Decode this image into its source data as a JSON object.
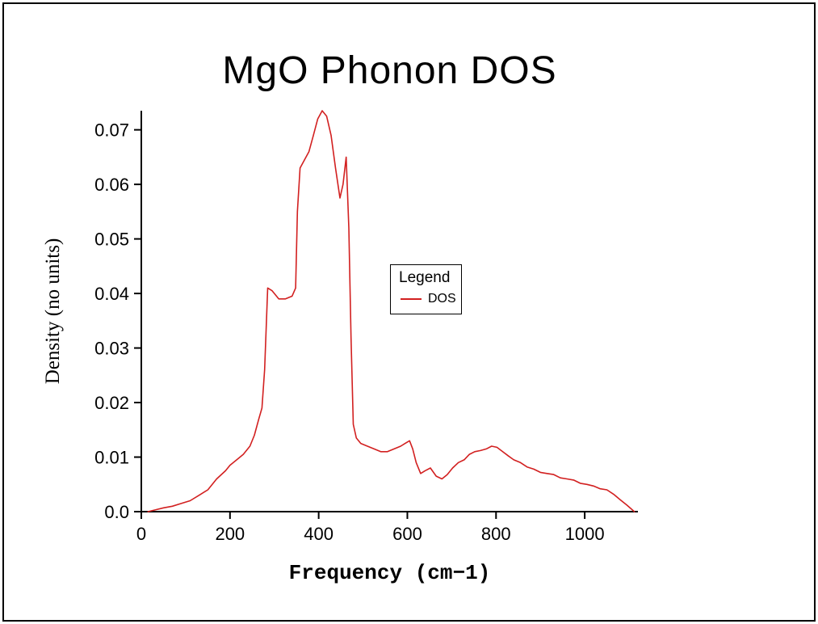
{
  "page": {
    "background": "#ffffff",
    "frame_color": "#000000"
  },
  "chart_data": {
    "type": "line",
    "title": "MgO Phonon DOS",
    "xlabel": "Frequency (cm−1)",
    "ylabel": "Density (no units)",
    "xlim": [
      0,
      1120
    ],
    "ylim": [
      0,
      0.0735
    ],
    "grid": false,
    "axis_color": "#000000",
    "legend": {
      "title": "Legend",
      "position": "center-right"
    },
    "x_ticks": [
      {
        "v": 0,
        "label": "0"
      },
      {
        "v": 200,
        "label": "200"
      },
      {
        "v": 400,
        "label": "400"
      },
      {
        "v": 600,
        "label": "600"
      },
      {
        "v": 800,
        "label": "800"
      },
      {
        "v": 1000,
        "label": "1000"
      }
    ],
    "y_ticks": [
      {
        "v": 0.0,
        "label": "0.0"
      },
      {
        "v": 0.01,
        "label": "0.01"
      },
      {
        "v": 0.02,
        "label": "0.02"
      },
      {
        "v": 0.03,
        "label": "0.03"
      },
      {
        "v": 0.04,
        "label": "0.04"
      },
      {
        "v": 0.05,
        "label": "0.05"
      },
      {
        "v": 0.06,
        "label": "0.06"
      },
      {
        "v": 0.07,
        "label": "0.07"
      }
    ],
    "series": [
      {
        "name": "DOS",
        "color": "#d22020",
        "points": [
          [
            15,
            0.0
          ],
          [
            30,
            0.0003
          ],
          [
            50,
            0.0007
          ],
          [
            70,
            0.001
          ],
          [
            90,
            0.0015
          ],
          [
            110,
            0.002
          ],
          [
            130,
            0.003
          ],
          [
            150,
            0.004
          ],
          [
            170,
            0.006
          ],
          [
            190,
            0.0075
          ],
          [
            200,
            0.0085
          ],
          [
            215,
            0.0095
          ],
          [
            230,
            0.0105
          ],
          [
            245,
            0.012
          ],
          [
            255,
            0.014
          ],
          [
            265,
            0.017
          ],
          [
            272,
            0.019
          ],
          [
            278,
            0.026
          ],
          [
            285,
            0.041
          ],
          [
            295,
            0.0405
          ],
          [
            310,
            0.039
          ],
          [
            325,
            0.039
          ],
          [
            340,
            0.0395
          ],
          [
            348,
            0.041
          ],
          [
            352,
            0.055
          ],
          [
            358,
            0.063
          ],
          [
            368,
            0.0645
          ],
          [
            378,
            0.066
          ],
          [
            388,
            0.069
          ],
          [
            398,
            0.072
          ],
          [
            408,
            0.0735
          ],
          [
            418,
            0.0725
          ],
          [
            428,
            0.069
          ],
          [
            438,
            0.063
          ],
          [
            448,
            0.0575
          ],
          [
            455,
            0.06
          ],
          [
            462,
            0.065
          ],
          [
            468,
            0.052
          ],
          [
            473,
            0.032
          ],
          [
            478,
            0.016
          ],
          [
            485,
            0.0135
          ],
          [
            495,
            0.0125
          ],
          [
            510,
            0.012
          ],
          [
            525,
            0.0115
          ],
          [
            540,
            0.011
          ],
          [
            555,
            0.011
          ],
          [
            570,
            0.0115
          ],
          [
            585,
            0.012
          ],
          [
            595,
            0.0125
          ],
          [
            605,
            0.013
          ],
          [
            612,
            0.0115
          ],
          [
            620,
            0.009
          ],
          [
            630,
            0.007
          ],
          [
            640,
            0.0075
          ],
          [
            652,
            0.008
          ],
          [
            665,
            0.0065
          ],
          [
            678,
            0.006
          ],
          [
            690,
            0.0068
          ],
          [
            702,
            0.008
          ],
          [
            715,
            0.009
          ],
          [
            728,
            0.0095
          ],
          [
            740,
            0.0105
          ],
          [
            752,
            0.011
          ],
          [
            765,
            0.0112
          ],
          [
            778,
            0.0115
          ],
          [
            790,
            0.012
          ],
          [
            802,
            0.0118
          ],
          [
            815,
            0.011
          ],
          [
            828,
            0.0102
          ],
          [
            840,
            0.0095
          ],
          [
            855,
            0.009
          ],
          [
            870,
            0.0082
          ],
          [
            885,
            0.0078
          ],
          [
            900,
            0.0072
          ],
          [
            915,
            0.007
          ],
          [
            930,
            0.0068
          ],
          [
            945,
            0.0062
          ],
          [
            960,
            0.006
          ],
          [
            975,
            0.0058
          ],
          [
            990,
            0.0052
          ],
          [
            1005,
            0.005
          ],
          [
            1020,
            0.0047
          ],
          [
            1035,
            0.0042
          ],
          [
            1050,
            0.004
          ],
          [
            1065,
            0.0032
          ],
          [
            1080,
            0.0022
          ],
          [
            1095,
            0.0012
          ],
          [
            1112,
            0.0
          ]
        ]
      }
    ]
  }
}
